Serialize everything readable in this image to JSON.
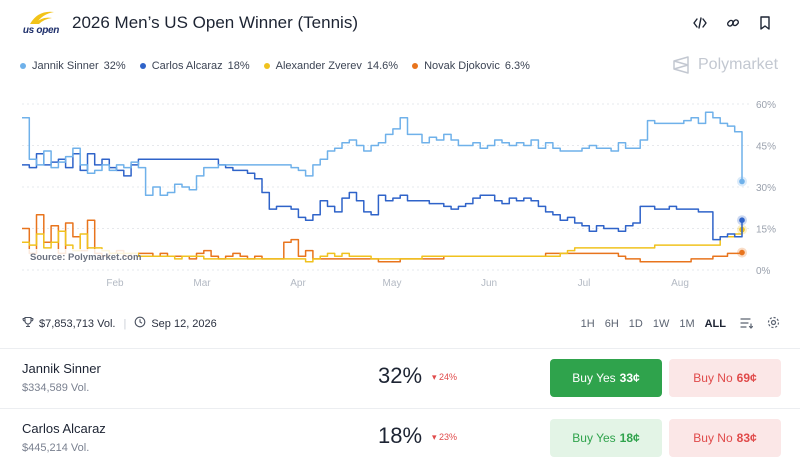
{
  "header": {
    "logo_text": "us open",
    "title": "2026 Men’s US Open Winner (Tennis)",
    "icons": [
      "code-icon",
      "link-icon",
      "bookmark-icon"
    ]
  },
  "brand": {
    "name": "Polymarket"
  },
  "legend": [
    {
      "name": "Jannik Sinner",
      "value": "32%",
      "color": "#6fb1ea"
    },
    {
      "name": "Carlos Alcaraz",
      "value": "18%",
      "color": "#2f63c9"
    },
    {
      "name": "Alexander Zverev",
      "value": "14.6%",
      "color": "#f0c21e"
    },
    {
      "name": "Novak Djokovic",
      "value": "6.3%",
      "color": "#e8741d"
    }
  ],
  "chart_data": {
    "type": "line",
    "source": "Source: Polymarket.com",
    "x_ticks": [
      "Feb",
      "Mar",
      "Apr",
      "May",
      "Jun",
      "Jul",
      "Aug"
    ],
    "y_ticks": [
      "60%",
      "45%",
      "30%",
      "15%",
      "0%"
    ],
    "ylim": [
      0,
      60
    ],
    "grid": true,
    "x_months": [
      0,
      1,
      2,
      3,
      4,
      5,
      6,
      7,
      8,
      9,
      10,
      11,
      12,
      13,
      14,
      15,
      16,
      17,
      18,
      19,
      20,
      21,
      22,
      23,
      24,
      25,
      26,
      27,
      28,
      29,
      30,
      31,
      32,
      33,
      34,
      35,
      36,
      37,
      38,
      39,
      40,
      41,
      42,
      43,
      44,
      45,
      46,
      47,
      48,
      49,
      50,
      51,
      52,
      53,
      54,
      55,
      56,
      57,
      58,
      59,
      60,
      61,
      62,
      63,
      64,
      65,
      66,
      67,
      68,
      69,
      70,
      71,
      72,
      73,
      74,
      75,
      76,
      77,
      78,
      79,
      80,
      81,
      82,
      83,
      84,
      85,
      86,
      87,
      88,
      89,
      90,
      91,
      92,
      93,
      94,
      95,
      96,
      97,
      98,
      99
    ],
    "series": [
      {
        "name": "Jannik Sinner",
        "color": "#6fb1ea",
        "values": [
          55,
          40,
          38,
          43,
          37,
          39,
          41,
          44,
          38,
          35,
          36,
          38,
          36,
          38,
          37,
          39,
          37,
          27,
          30,
          27,
          28,
          31,
          30,
          29,
          34,
          37,
          37,
          38,
          38,
          38,
          38,
          38,
          38,
          38,
          38,
          38,
          38,
          37,
          36,
          34,
          38,
          40,
          43,
          44,
          46,
          47,
          45,
          43,
          45,
          46,
          49,
          51,
          55,
          49,
          49,
          46,
          48,
          47,
          49,
          47,
          45,
          45,
          46,
          44,
          45,
          47,
          46,
          45,
          46,
          45,
          47,
          44,
          46,
          44,
          43,
          43,
          43,
          44,
          45,
          44,
          44,
          43,
          46,
          44,
          44,
          47,
          54,
          53,
          53,
          53,
          53,
          54,
          55,
          53,
          57,
          55,
          53,
          52,
          50,
          32
        ]
      },
      {
        "name": "Carlos Alcaraz",
        "color": "#2f63c9",
        "values": [
          38,
          37,
          42,
          38,
          39,
          40,
          37,
          42,
          36,
          42,
          38,
          40,
          37,
          36,
          34,
          38,
          40,
          40,
          40,
          40,
          40,
          40,
          40,
          40,
          40,
          40,
          40,
          38,
          37,
          36,
          36,
          35,
          33,
          28,
          22,
          23,
          23,
          22,
          19,
          18,
          20,
          25,
          23,
          21,
          26,
          28,
          25,
          21,
          20,
          27,
          25,
          26,
          27,
          25,
          25,
          25,
          24,
          24,
          23,
          22,
          23,
          24,
          26,
          27,
          27,
          25,
          24,
          26,
          25,
          26,
          25,
          23,
          21,
          20,
          18,
          19,
          17,
          16,
          14,
          16,
          15,
          15,
          14,
          16,
          17,
          23,
          23,
          22,
          22,
          23,
          22,
          22,
          22,
          21,
          21,
          11,
          12,
          13,
          12,
          18
        ]
      },
      {
        "name": "Alexander Zverev",
        "color": "#f0c21e",
        "values": [
          10,
          9,
          13,
          8,
          10,
          14,
          9,
          7,
          13,
          8,
          8,
          7,
          6,
          6,
          6,
          6,
          5,
          5,
          5,
          5,
          5,
          4,
          5,
          5,
          5,
          4,
          4,
          4,
          4,
          4,
          4,
          4,
          4,
          4,
          4,
          4,
          4,
          4,
          4,
          3,
          4,
          5,
          6,
          5,
          6,
          5,
          5,
          5,
          4,
          4,
          4,
          4,
          4,
          4,
          4,
          5,
          5,
          5,
          5,
          5,
          5,
          5,
          5,
          5,
          5,
          5,
          5,
          5,
          5,
          5,
          5,
          5,
          5,
          5,
          6,
          7,
          8,
          8,
          8,
          8,
          8,
          8,
          8,
          8,
          8,
          8,
          8,
          9,
          9,
          9,
          9,
          9,
          9,
          9,
          9,
          9,
          12,
          12,
          13,
          14.6
        ]
      },
      {
        "name": "Novak Djokovic",
        "color": "#e8741d",
        "values": [
          15,
          6,
          20,
          10,
          16,
          6,
          17,
          12,
          7,
          18,
          6,
          5,
          6,
          7,
          5,
          6,
          6,
          6,
          5,
          6,
          5,
          5,
          5,
          4,
          6,
          7,
          5,
          4,
          5,
          6,
          5,
          4,
          5,
          4,
          4,
          4,
          10,
          11,
          5,
          7,
          4,
          4,
          4,
          4,
          4,
          4,
          4,
          4,
          4,
          3,
          3,
          3,
          4,
          4,
          4,
          4,
          4,
          4,
          5,
          5,
          5,
          5,
          5,
          5,
          5,
          5,
          5,
          5,
          5,
          5,
          5,
          5,
          6,
          6,
          6,
          6,
          6,
          6,
          6,
          6,
          6,
          6,
          5,
          4,
          4,
          3,
          3,
          3,
          3,
          3,
          3,
          3,
          4,
          4,
          4,
          5,
          5,
          6,
          6,
          6.3
        ]
      }
    ]
  },
  "stats": {
    "volume": "$7,853,713 Vol.",
    "date": "Sep 12, 2026",
    "ranges": [
      "1H",
      "6H",
      "1D",
      "1W",
      "1M",
      "ALL"
    ],
    "active_range": "ALL"
  },
  "outcomes": [
    {
      "name": "Jannik Sinner",
      "volume": "$334,589 Vol.",
      "percent": "32%",
      "change": "▾ 24%",
      "yes_label": "Buy Yes",
      "yes_price": "33¢",
      "no_label": "Buy No",
      "no_price": "69¢"
    },
    {
      "name": "Carlos Alcaraz",
      "volume": "$445,214 Vol.",
      "percent": "18%",
      "change": "▾ 23%",
      "yes_label": "Buy Yes",
      "yes_price": "18¢",
      "no_label": "Buy No",
      "no_price": "83¢"
    }
  ]
}
